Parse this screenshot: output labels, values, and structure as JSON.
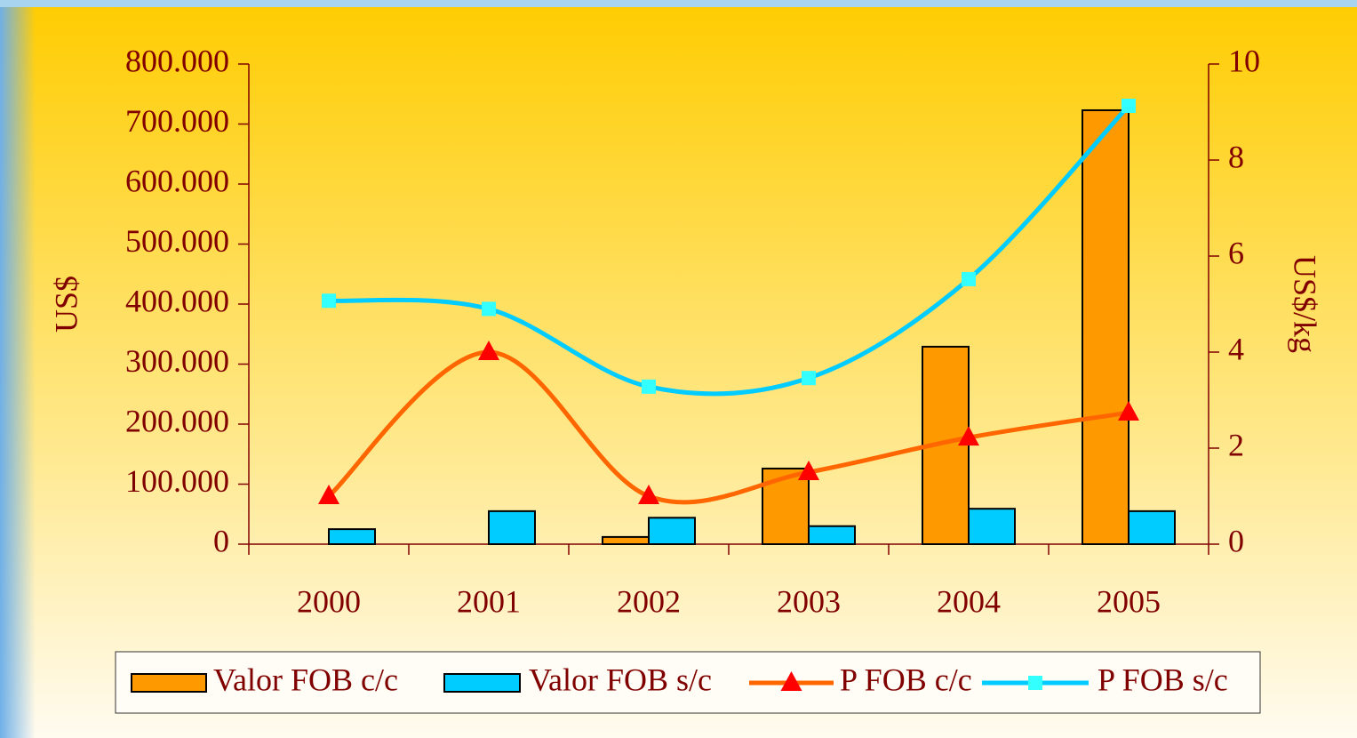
{
  "chart_data": {
    "type": "bar",
    "categories": [
      "2000",
      "2001",
      "2002",
      "2003",
      "2004",
      "2005"
    ],
    "y_label": "US$",
    "y2_label": "US$/kg",
    "ylim": [
      0,
      800000
    ],
    "yticks": [
      0,
      {
        "value": 100000,
        "label": "100.000"
      },
      {
        "value": 200000,
        "label": "200.000"
      },
      {
        "value": 300000,
        "label": "300.000"
      },
      {
        "value": 400000,
        "label": "400.000"
      },
      {
        "value": 500000,
        "label": "500.000"
      },
      {
        "value": 600000,
        "label": "600.000"
      },
      {
        "value": 700000,
        "label": "700.000"
      },
      {
        "value": 800000,
        "label": "800.000"
      }
    ],
    "y2lim": [
      0,
      10
    ],
    "y2ticks": [
      0,
      2,
      4,
      6,
      8,
      10
    ],
    "legend": "bottom",
    "series": [
      {
        "name": "Valor FOB c/c",
        "type": "bar",
        "color": "#ff9900",
        "values": [
          0,
          0,
          12000,
          126000,
          329000,
          723000
        ]
      },
      {
        "name": "Valor FOB s/c",
        "type": "bar",
        "color": "#00ccff",
        "values": [
          25000,
          55000,
          44000,
          30000,
          59000,
          55000
        ]
      },
      {
        "name": "P FOB c/c",
        "type": "line",
        "axis": "y2",
        "color": "#ff6600",
        "marker": "triangle",
        "marker_color": "#ff0000",
        "values": [
          1.0,
          4.0,
          1.0,
          1.5,
          2.22,
          2.74
        ]
      },
      {
        "name": "P FOB s/c",
        "type": "line",
        "axis": "y2",
        "color": "#00ccff",
        "marker": "square",
        "marker_color": "#33ffff",
        "values": [
          5.07,
          4.9,
          3.28,
          3.46,
          5.52,
          9.13
        ]
      }
    ]
  }
}
